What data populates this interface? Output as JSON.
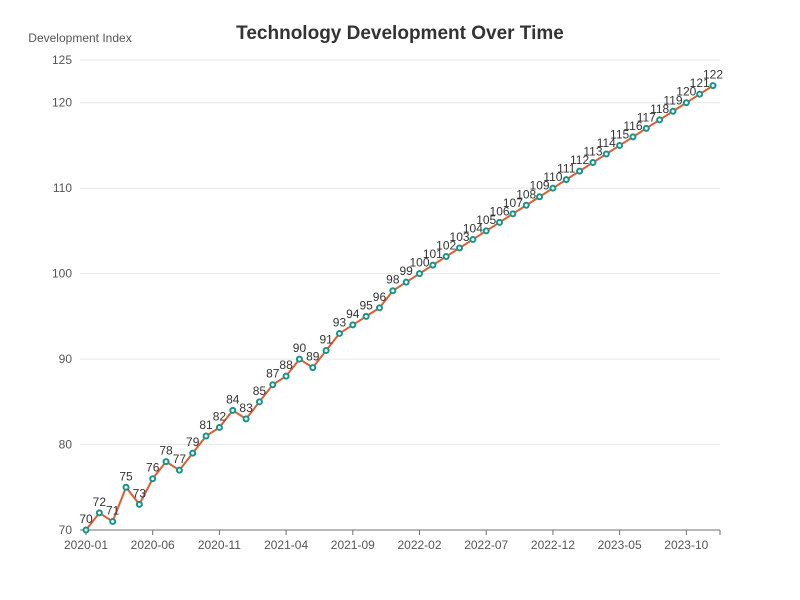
{
  "chart_data": {
    "type": "line",
    "title": "Technology Development Over Time",
    "ylabel": "Development Index",
    "xlabel": "",
    "ylim": [
      70,
      125
    ],
    "yticks": [
      70,
      80,
      90,
      100,
      110,
      120,
      125
    ],
    "grid": true,
    "x_tick_labels": [
      "2020-01",
      "2020-06",
      "2020-11",
      "2021-04",
      "2021-09",
      "2022-02",
      "2022-07",
      "2022-12",
      "2023-05",
      "2023-10"
    ],
    "x": [
      "2020-01",
      "2020-02",
      "2020-03",
      "2020-04",
      "2020-05",
      "2020-06",
      "2020-07",
      "2020-08",
      "2020-09",
      "2020-10",
      "2020-11",
      "2020-12",
      "2021-01",
      "2021-02",
      "2021-03",
      "2021-04",
      "2021-05",
      "2021-06",
      "2021-07",
      "2021-08",
      "2021-09",
      "2021-10",
      "2021-11",
      "2021-12",
      "2022-01",
      "2022-02",
      "2022-03",
      "2022-04",
      "2022-05",
      "2022-06",
      "2022-07",
      "2022-08",
      "2022-09",
      "2022-10",
      "2022-11",
      "2022-12",
      "2023-01",
      "2023-02",
      "2023-03",
      "2023-04",
      "2023-05",
      "2023-06",
      "2023-07",
      "2023-08",
      "2023-09",
      "2023-10",
      "2023-11",
      "2023-12"
    ],
    "series": [
      {
        "values": [
          70,
          72,
          71,
          75,
          73,
          76,
          78,
          77,
          79,
          81,
          82,
          84,
          83,
          85,
          87,
          88,
          90,
          89,
          91,
          93,
          94,
          95,
          96,
          98,
          99,
          100,
          101,
          102,
          103,
          104,
          105,
          106,
          107,
          108,
          109,
          110,
          111,
          112,
          113,
          114,
          115,
          116,
          117,
          118,
          119,
          120,
          121,
          122
        ],
        "color": "#e35b2f",
        "marker_color": "#12968c"
      }
    ]
  }
}
